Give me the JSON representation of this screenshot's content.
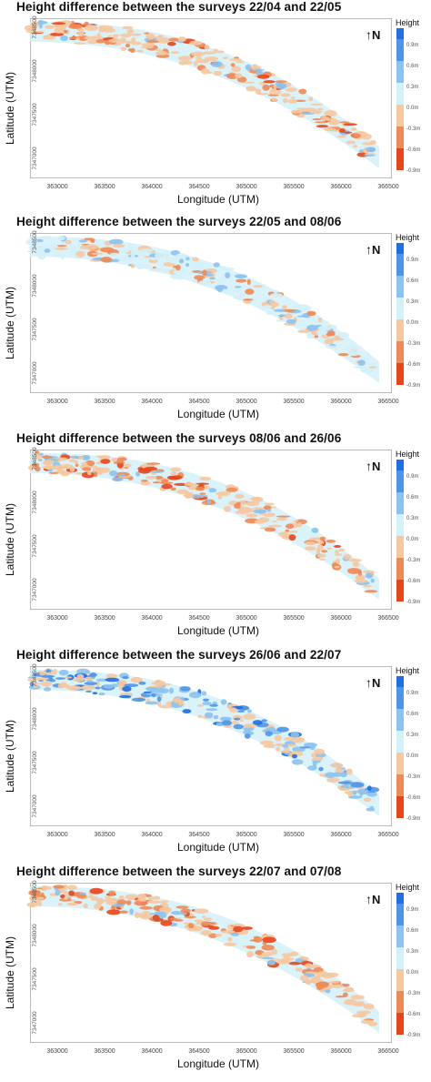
{
  "axes": {
    "xlabel": "Longitude (UTM)",
    "ylabel": "Latitude (UTM)",
    "north_label": "N",
    "legend_title": "Height"
  },
  "chart_data": [
    {
      "type": "heatmap",
      "title": "Height difference between the surveys 22/04 and 22/05",
      "xlabel": "Longitude (UTM)",
      "ylabel": "Latitude (UTM)",
      "x_ticks": [
        "363000",
        "363500",
        "364000",
        "364500",
        "365000",
        "365500",
        "366000",
        "366500"
      ],
      "y_ticks": [
        "7348500",
        "7348000",
        "7347500",
        "7347000"
      ],
      "legend_title": "Height",
      "legend_labels": [
        "0.9m",
        "0.6m",
        "0.3m",
        "0.0m",
        "-0.3m",
        "-0.6m",
        "-0.9m"
      ],
      "dominant_change": "decrease",
      "colors": [
        "#1f6fe0",
        "#4f95e6",
        "#8cc2ee",
        "#d4f0f8",
        "#f6c8a0",
        "#ee8a55",
        "#e5461c"
      ]
    },
    {
      "type": "heatmap",
      "title": "Height difference between the surveys 22/05 and 08/06",
      "xlabel": "Longitude (UTM)",
      "ylabel": "Latitude (UTM)",
      "x_ticks": [
        "363000",
        "363500",
        "364000",
        "364500",
        "365000",
        "365500",
        "366000",
        "366500"
      ],
      "y_ticks": [
        "7348500",
        "7348000",
        "7347500",
        "7347000"
      ],
      "legend_title": "Height",
      "legend_labels": [
        "0.9m",
        "0.6m",
        "0.3m",
        "0.0m",
        "-0.3m",
        "-0.6m",
        "-0.9m"
      ],
      "dominant_change": "mixed",
      "colors": [
        "#1f6fe0",
        "#4f95e6",
        "#8cc2ee",
        "#d4f0f8",
        "#f6c8a0",
        "#ee8a55",
        "#e5461c"
      ]
    },
    {
      "type": "heatmap",
      "title": "Height difference between the surveys 08/06 and 26/06",
      "xlabel": "Longitude (UTM)",
      "ylabel": "Latitude (UTM)",
      "x_ticks": [
        "363000",
        "363500",
        "364000",
        "364500",
        "365000",
        "365500",
        "366000",
        "366500"
      ],
      "y_ticks": [
        "7348500",
        "7348000",
        "7347500",
        "7347000"
      ],
      "legend_title": "Height",
      "legend_labels": [
        "0.9m",
        "0.6m",
        "0.3m",
        "0.0m",
        "-0.3m",
        "-0.6m",
        "-0.9m"
      ],
      "dominant_change": "decrease",
      "colors": [
        "#1f6fe0",
        "#4f95e6",
        "#8cc2ee",
        "#d4f0f8",
        "#f6c8a0",
        "#ee8a55",
        "#e5461c"
      ]
    },
    {
      "type": "heatmap",
      "title": "Height difference between the surveys 26/06 and 22/07",
      "xlabel": "Longitude (UTM)",
      "ylabel": "Latitude (UTM)",
      "x_ticks": [
        "363000",
        "363500",
        "364000",
        "364500",
        "365000",
        "365500",
        "366000",
        "366500"
      ],
      "y_ticks": [
        "7348500",
        "7348000",
        "7347500",
        "7347000"
      ],
      "legend_title": "Height",
      "legend_labels": [
        "0.9m",
        "0.6m",
        "0.3m",
        "0.0m",
        "-0.3m",
        "-0.6m",
        "-0.9m"
      ],
      "dominant_change": "increase",
      "colors": [
        "#1f6fe0",
        "#4f95e6",
        "#8cc2ee",
        "#d4f0f8",
        "#f6c8a0",
        "#ee8a55",
        "#e5461c"
      ]
    },
    {
      "type": "heatmap",
      "title": "Height difference between the surveys 22/07 and 07/08",
      "xlabel": "Longitude (UTM)",
      "ylabel": "Latitude (UTM)",
      "x_ticks": [
        "363000",
        "363500",
        "364000",
        "364500",
        "365000",
        "365500",
        "366000",
        "366500"
      ],
      "y_ticks": [
        "7348500",
        "7348000",
        "7347500",
        "7347000"
      ],
      "legend_title": "Height",
      "legend_labels": [
        "0.9m",
        "0.6m",
        "0.3m",
        "0.0m",
        "-0.3m",
        "-0.6m",
        "-0.9m"
      ],
      "dominant_change": "decrease",
      "colors": [
        "#1f6fe0",
        "#4f95e6",
        "#8cc2ee",
        "#d4f0f8",
        "#f6c8a0",
        "#ee8a55",
        "#e5461c"
      ]
    }
  ]
}
